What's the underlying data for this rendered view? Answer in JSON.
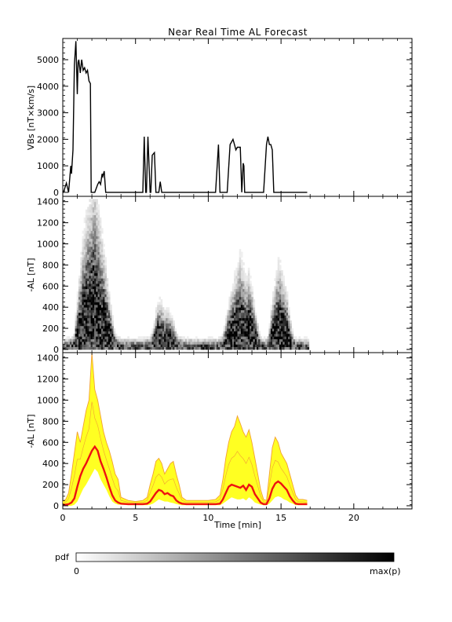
{
  "title": "Near Real Time AL Forecast",
  "colorbar": {
    "label": "pdf",
    "min_label": "0",
    "max_label": "max(p)"
  },
  "colors": {
    "median_line": "#ee1111",
    "band_fill": "#ffff22",
    "band_line": "#f2a033",
    "vbs_line": "#000000"
  },
  "chart_data": [
    {
      "type": "line",
      "panel": "top",
      "title": "Near Real Time AL Forecast",
      "ylabel": "VBs [nT×km/s]",
      "xlim": [
        0,
        24
      ],
      "ylim": [
        -150,
        5800
      ],
      "yticks": [
        0,
        1000,
        2000,
        3000,
        4000,
        5000
      ],
      "series": [
        {
          "x": [
            0.05,
            0.25,
            0.4,
            0.55,
            0.6,
            0.7,
            0.8,
            0.9,
            1.0,
            1.05,
            1.1,
            1.2,
            1.3,
            1.4,
            1.5,
            1.6,
            1.7,
            1.8,
            1.9,
            1.95,
            2.05,
            2.2,
            2.4,
            2.5,
            2.6,
            2.7,
            2.75,
            2.85,
            2.95,
            3.1,
            3.5,
            4.0,
            4.5,
            5.0,
            5.5,
            5.6,
            5.7,
            5.75,
            5.85,
            6.0,
            6.05,
            6.15,
            6.3,
            6.4,
            6.5,
            6.6,
            6.7,
            6.8,
            6.9,
            7.2,
            8.0,
            9.0,
            10.0,
            10.5,
            10.7,
            10.8,
            10.9,
            11.0,
            11.1,
            11.3,
            11.5,
            11.7,
            11.8,
            11.9,
            12.0,
            12.1,
            12.2,
            12.3,
            12.4,
            12.45,
            12.5,
            12.6,
            12.8,
            13.2,
            13.8,
            14.0,
            14.1,
            14.2,
            14.3,
            14.4,
            14.5,
            14.6,
            14.7,
            14.9,
            15.5,
            16.0,
            16.5,
            16.8
          ],
          "y": [
            0,
            350,
            0,
            1000,
            700,
            1600,
            4800,
            5700,
            3700,
            4900,
            5000,
            4500,
            5000,
            4600,
            4700,
            4500,
            4600,
            4200,
            4100,
            0,
            0,
            0,
            300,
            400,
            300,
            700,
            600,
            800,
            0,
            0,
            0,
            0,
            0,
            0,
            0,
            2100,
            0,
            0,
            2100,
            0,
            0,
            1400,
            1500,
            0,
            0,
            0,
            400,
            0,
            0,
            0,
            0,
            0,
            0,
            0,
            1800,
            0,
            0,
            0,
            0,
            0,
            1800,
            2000,
            1800,
            1600,
            1700,
            1700,
            1700,
            0,
            1100,
            1000,
            0,
            0,
            0,
            0,
            0,
            1800,
            2100,
            1800,
            1800,
            1600,
            0,
            0,
            0,
            0,
            0,
            0,
            0,
            0
          ]
        }
      ]
    },
    {
      "type": "heatmap",
      "panel": "middle",
      "ylabel": "-AL [nT]",
      "xlim": [
        0,
        24
      ],
      "ylim": [
        -30,
        1450
      ],
      "yticks": [
        0,
        200,
        400,
        600,
        800,
        1000,
        1200,
        1400
      ],
      "series": [
        {
          "name": "",
          "x": [
            0.0,
            0.2,
            0.4,
            0.6,
            0.8,
            1.0,
            1.2,
            1.4,
            1.6,
            1.8,
            2.0,
            2.2,
            2.4,
            2.6,
            2.8,
            3.0,
            3.2,
            3.4,
            3.6,
            3.8,
            4.0,
            4.5,
            5.0,
            5.5,
            5.8,
            6.0,
            6.2,
            6.4,
            6.6,
            6.8,
            7.0,
            7.2,
            7.4,
            7.6,
            7.8,
            8.0,
            8.2,
            8.5,
            9.0,
            10.0,
            10.5,
            10.8,
            11.0,
            11.2,
            11.4,
            11.6,
            11.8,
            12.0,
            12.2,
            12.4,
            12.6,
            12.8,
            13.0,
            13.2,
            13.4,
            13.6,
            13.8,
            14.0,
            14.2,
            14.4,
            14.6,
            14.8,
            15.0,
            15.2,
            15.4,
            15.6,
            15.8,
            16.0,
            16.2,
            16.5,
            16.8
          ],
          "values": [
            10,
            10,
            15,
            20,
            40,
            120,
            200,
            270,
            320,
            360,
            390,
            420,
            360,
            300,
            250,
            190,
            130,
            80,
            40,
            20,
            10,
            10,
            10,
            10,
            15,
            25,
            50,
            90,
            120,
            110,
            90,
            100,
            80,
            70,
            40,
            30,
            15,
            10,
            10,
            10,
            10,
            15,
            35,
            70,
            110,
            140,
            170,
            200,
            230,
            200,
            160,
            190,
            150,
            100,
            60,
            25,
            10,
            10,
            50,
            120,
            160,
            210,
            200,
            160,
            140,
            80,
            40,
            15,
            10,
            10,
            10
          ]
        }
      ]
    },
    {
      "type": "line",
      "panel": "bottom",
      "xlabel": "Time [min]",
      "ylabel": "-AL [nT]",
      "xlim": [
        0,
        24
      ],
      "ylim": [
        -30,
        1450
      ],
      "xticks": [
        0,
        5,
        10,
        15,
        20
      ],
      "yticks": [
        0,
        200,
        400,
        600,
        800,
        1000,
        1200,
        1400
      ],
      "series": [
        {
          "name": "",
          "x": [
            0.0,
            0.2,
            0.4,
            0.6,
            0.8,
            1.0,
            1.2,
            1.4,
            1.6,
            1.8,
            2.0,
            2.2,
            2.4,
            2.6,
            2.8,
            3.0,
            3.2,
            3.4,
            3.6,
            3.8,
            4.0,
            4.5,
            5.0,
            5.5,
            5.8,
            6.0,
            6.2,
            6.4,
            6.6,
            6.8,
            7.0,
            7.2,
            7.4,
            7.6,
            7.8,
            8.0,
            8.2,
            8.5,
            9.0,
            10.0,
            10.5,
            10.8,
            11.0,
            11.2,
            11.4,
            11.6,
            11.8,
            12.0,
            12.2,
            12.4,
            12.6,
            12.8,
            13.0,
            13.2,
            13.4,
            13.6,
            13.8,
            14.0,
            14.2,
            14.4,
            14.6,
            14.8,
            15.0,
            15.2,
            15.4,
            15.6,
            15.8,
            16.0,
            16.2,
            16.5,
            16.8
          ],
          "median": [
            10,
            10,
            15,
            30,
            70,
            180,
            280,
            350,
            400,
            460,
            520,
            560,
            520,
            420,
            350,
            270,
            180,
            100,
            50,
            30,
            20,
            15,
            15,
            15,
            20,
            40,
            80,
            120,
            150,
            140,
            110,
            120,
            100,
            90,
            50,
            30,
            20,
            15,
            15,
            15,
            15,
            20,
            60,
            120,
            180,
            200,
            190,
            180,
            170,
            190,
            150,
            200,
            180,
            110,
            70,
            30,
            15,
            15,
            70,
            160,
            210,
            230,
            210,
            180,
            150,
            90,
            50,
            20,
            15,
            15,
            15
          ],
          "band_upper": [
            40,
            60,
            120,
            300,
            500,
            700,
            600,
            750,
            900,
            1000,
            1450,
            1100,
            1000,
            850,
            700,
            600,
            520,
            420,
            300,
            250,
            80,
            50,
            40,
            50,
            80,
            200,
            300,
            420,
            450,
            400,
            300,
            350,
            400,
            420,
            300,
            200,
            80,
            50,
            50,
            50,
            60,
            100,
            250,
            450,
            600,
            700,
            750,
            850,
            780,
            700,
            650,
            720,
            600,
            450,
            300,
            150,
            60,
            50,
            300,
            550,
            650,
            600,
            500,
            450,
            400,
            300,
            200,
            100,
            60,
            60,
            50
          ],
          "band_lower": [
            0,
            0,
            0,
            0,
            10,
            40,
            100,
            160,
            200,
            250,
            300,
            350,
            320,
            250,
            200,
            150,
            90,
            40,
            20,
            10,
            10,
            5,
            5,
            5,
            5,
            10,
            20,
            40,
            60,
            50,
            40,
            40,
            30,
            25,
            15,
            10,
            5,
            5,
            5,
            5,
            5,
            5,
            20,
            40,
            60,
            80,
            70,
            60,
            60,
            70,
            50,
            80,
            60,
            30,
            20,
            10,
            5,
            5,
            20,
            50,
            80,
            90,
            80,
            60,
            50,
            30,
            20,
            5,
            5,
            5,
            5
          ]
        }
      ]
    }
  ]
}
